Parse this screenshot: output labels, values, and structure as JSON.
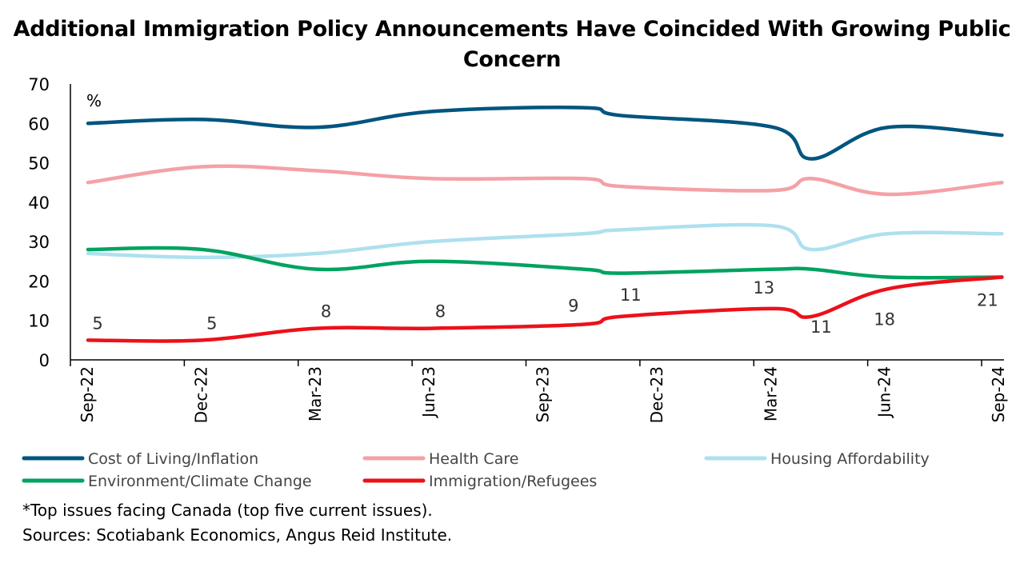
{
  "chart_data": {
    "type": "line",
    "title": "Additional Immigration Policy Announcements Have Coincided With Growing Public Concern",
    "ylabel": "%",
    "ylim": [
      0,
      70
    ],
    "yticks": [
      0,
      10,
      20,
      30,
      40,
      50,
      60,
      70
    ],
    "xtick_labels": [
      "Sep-22",
      "Dec-22",
      "Mar-23",
      "Jun-23",
      "Sep-23",
      "Dec-23",
      "Mar-24",
      "Jun-24",
      "Sep-24"
    ],
    "x": [
      "Sep-22",
      "Dec-22",
      "Mar-23",
      "Jun-23",
      "Oct-23",
      "Nov-23",
      "Mar-24",
      "Apr-24",
      "Jun-24",
      "Sep-24"
    ],
    "grid": false,
    "legend_placement": "bottom",
    "series": [
      {
        "name": "Cost of Living/Inflation",
        "color": "#00557f",
        "values": [
          60,
          61,
          59,
          63,
          64,
          62,
          59,
          51,
          59,
          57
        ]
      },
      {
        "name": "Health Care",
        "color": "#f4a1a6",
        "values": [
          45,
          49,
          48,
          46,
          46,
          44,
          43,
          46,
          42,
          45
        ]
      },
      {
        "name": "Housing Affordability",
        "color": "#aee0ef",
        "values": [
          27,
          26,
          27,
          30,
          32,
          33,
          34,
          28,
          32,
          32
        ]
      },
      {
        "name": "Environment/Climate Change",
        "color": "#00a360",
        "values": [
          28,
          28,
          23,
          25,
          23,
          22,
          23,
          23,
          21,
          21
        ]
      },
      {
        "name": "Immigration/Refugees",
        "color": "#ec111a",
        "values": [
          5,
          5,
          8,
          8,
          9,
          11,
          13,
          11,
          18,
          21
        ],
        "data_labels": [
          "5",
          "5",
          "8",
          "8",
          "9",
          "11",
          "13",
          "11",
          "18",
          "21"
        ]
      }
    ]
  },
  "notes": {
    "footnote": "*Top issues facing Canada (top five current issues).",
    "sources": "Sources: Scotiabank Economics, Angus Reid Institute."
  }
}
